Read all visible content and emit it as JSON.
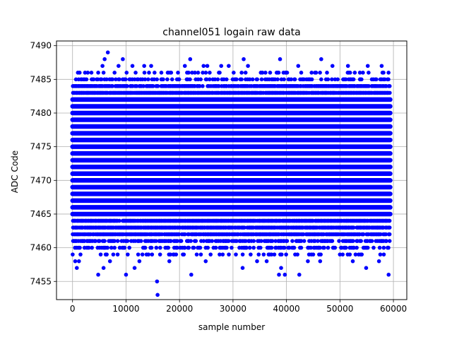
{
  "chart_data": {
    "type": "scatter",
    "title": "channel051 logain raw data",
    "xlabel": "sample number",
    "ylabel": "ADC Code",
    "xlim": [
      -3000,
      62500
    ],
    "ylim": [
      7452.3,
      7490.7
    ],
    "xticks": [
      0,
      10000,
      20000,
      30000,
      40000,
      50000,
      60000
    ],
    "xtick_labels": [
      "0",
      "10000",
      "20000",
      "30000",
      "40000",
      "50000",
      "60000"
    ],
    "yticks": [
      7455,
      7460,
      7465,
      7470,
      7475,
      7480,
      7485,
      7490
    ],
    "ytick_labels": [
      "7455",
      "7460",
      "7465",
      "7470",
      "7475",
      "7480",
      "7485",
      "7490"
    ],
    "grid": true,
    "marker_color": "#0000ff",
    "x_range": [
      0,
      59400
    ],
    "core_band": [
      7465,
      7482
    ],
    "density_by_code": [
      {
        "y": 7462,
        "fraction": 0.85
      },
      {
        "y": 7463,
        "fraction": 0.92
      },
      {
        "y": 7464,
        "fraction": 0.96
      },
      {
        "y": 7483,
        "fraction": 0.93
      },
      {
        "y": 7484,
        "fraction": 0.82
      },
      {
        "y": 7461,
        "fraction": 0.55
      },
      {
        "y": 7460,
        "fraction": 0.32
      },
      {
        "y": 7459,
        "fraction": 0.15
      },
      {
        "y": 7485,
        "fraction": 0.42
      },
      {
        "y": 7486,
        "fraction": 0.14
      }
    ],
    "outliers": [
      {
        "x": 6600,
        "y": 7489
      },
      {
        "x": 6000,
        "y": 7488
      },
      {
        "x": 9400,
        "y": 7488
      },
      {
        "x": 22000,
        "y": 7488
      },
      {
        "x": 32000,
        "y": 7488
      },
      {
        "x": 38800,
        "y": 7488
      },
      {
        "x": 46500,
        "y": 7488
      },
      {
        "x": 5600,
        "y": 7487
      },
      {
        "x": 8600,
        "y": 7487
      },
      {
        "x": 11200,
        "y": 7487
      },
      {
        "x": 13400,
        "y": 7487
      },
      {
        "x": 14700,
        "y": 7487
      },
      {
        "x": 21000,
        "y": 7487
      },
      {
        "x": 24500,
        "y": 7487
      },
      {
        "x": 25200,
        "y": 7487
      },
      {
        "x": 27800,
        "y": 7487
      },
      {
        "x": 29200,
        "y": 7487
      },
      {
        "x": 32800,
        "y": 7487
      },
      {
        "x": 42200,
        "y": 7487
      },
      {
        "x": 48600,
        "y": 7487
      },
      {
        "x": 51500,
        "y": 7487
      },
      {
        "x": 55200,
        "y": 7487
      },
      {
        "x": 57800,
        "y": 7487
      },
      {
        "x": 1000,
        "y": 7486
      },
      {
        "x": 4800,
        "y": 7486
      },
      {
        "x": 17800,
        "y": 7486
      },
      {
        "x": 21700,
        "y": 7486
      },
      {
        "x": 35200,
        "y": 7486
      },
      {
        "x": 44700,
        "y": 7486
      },
      {
        "x": 54300,
        "y": 7486
      },
      {
        "x": 800,
        "y": 7457
      },
      {
        "x": 5800,
        "y": 7457
      },
      {
        "x": 11600,
        "y": 7457
      },
      {
        "x": 31800,
        "y": 7457
      },
      {
        "x": 39000,
        "y": 7457
      },
      {
        "x": 54900,
        "y": 7457
      },
      {
        "x": 4800,
        "y": 7456
      },
      {
        "x": 10000,
        "y": 7456
      },
      {
        "x": 22200,
        "y": 7456
      },
      {
        "x": 38600,
        "y": 7456
      },
      {
        "x": 39700,
        "y": 7456
      },
      {
        "x": 42400,
        "y": 7456
      },
      {
        "x": 59100,
        "y": 7456
      },
      {
        "x": 15800,
        "y": 7455
      },
      {
        "x": 15900,
        "y": 7453
      },
      {
        "x": 500,
        "y": 7458
      },
      {
        "x": 1200,
        "y": 7458
      },
      {
        "x": 7000,
        "y": 7458
      },
      {
        "x": 12500,
        "y": 7458
      },
      {
        "x": 18100,
        "y": 7458
      },
      {
        "x": 24900,
        "y": 7458
      },
      {
        "x": 34500,
        "y": 7458
      },
      {
        "x": 36300,
        "y": 7458
      },
      {
        "x": 44000,
        "y": 7458
      },
      {
        "x": 46300,
        "y": 7458
      },
      {
        "x": 52400,
        "y": 7458
      },
      {
        "x": 57300,
        "y": 7458
      }
    ]
  }
}
